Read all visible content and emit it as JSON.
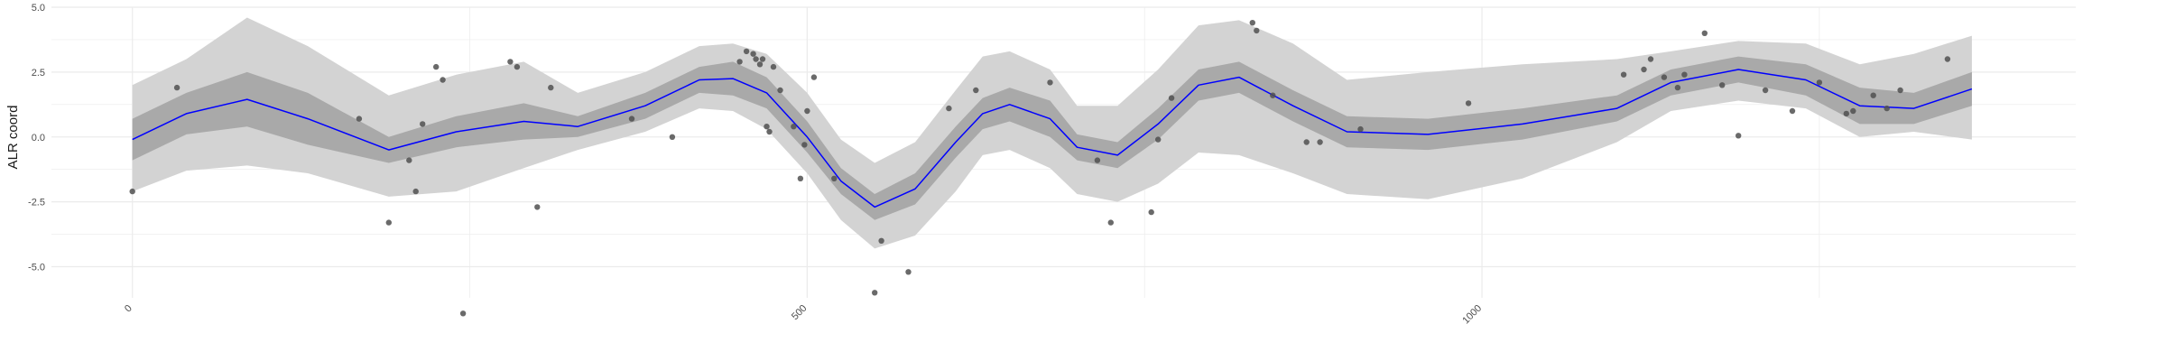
{
  "chart_data": {
    "type": "line",
    "title": "",
    "xlabel": "",
    "ylabel": "ALR coord",
    "xlim": [
      -60,
      1440
    ],
    "ylim": [
      -6.2,
      5.0
    ],
    "grid": true,
    "x_ticks": [
      0,
      500,
      1000
    ],
    "y_ticks": [
      -5.0,
      -2.5,
      0.0,
      2.5,
      5.0
    ],
    "x_tick_labels": [
      "0",
      "500",
      "1000"
    ],
    "y_tick_labels": [
      "-5.0",
      "-2.5",
      "0.0",
      "2.5",
      "5.0"
    ],
    "colors": {
      "line": "#0000ff",
      "inner_band": "#a9a9a9",
      "outer_band": "#d3d3d3",
      "points": "#505050",
      "grid": "#ebebeb"
    },
    "series": [
      {
        "kind": "mean",
        "x": [
          0,
          40,
          85,
          130,
          190,
          240,
          290,
          330,
          380,
          420,
          445,
          470,
          500,
          525,
          550,
          580,
          610,
          630,
          650,
          680,
          700,
          730,
          760,
          790,
          820,
          860,
          900,
          960,
          1030,
          1100,
          1140,
          1190,
          1240,
          1280,
          1320,
          1363
        ],
        "y": [
          -0.1,
          0.9,
          1.45,
          0.7,
          -0.5,
          0.2,
          0.6,
          0.4,
          1.2,
          2.2,
          2.25,
          1.7,
          0.0,
          -1.7,
          -2.7,
          -2.0,
          -0.2,
          0.9,
          1.25,
          0.7,
          -0.4,
          -0.7,
          0.5,
          2.0,
          2.3,
          1.2,
          0.2,
          0.1,
          0.5,
          1.1,
          2.1,
          2.6,
          2.2,
          1.2,
          1.1,
          1.85
        ]
      },
      {
        "kind": "inner-band",
        "lower": [
          -0.9,
          0.1,
          0.4,
          -0.3,
          -1.0,
          -0.4,
          -0.1,
          0.0,
          0.7,
          1.7,
          1.6,
          1.1,
          -0.6,
          -2.2,
          -3.2,
          -2.6,
          -0.8,
          0.3,
          0.6,
          0.0,
          -0.9,
          -1.2,
          -0.1,
          1.4,
          1.7,
          0.6,
          -0.4,
          -0.5,
          -0.1,
          0.6,
          1.6,
          2.1,
          1.6,
          0.5,
          0.5,
          1.2
        ],
        "upper": [
          0.7,
          1.7,
          2.5,
          1.7,
          0.0,
          0.8,
          1.3,
          0.8,
          1.7,
          2.7,
          2.9,
          2.3,
          0.6,
          -1.2,
          -2.2,
          -1.4,
          0.4,
          1.5,
          1.9,
          1.4,
          0.1,
          -0.2,
          1.1,
          2.6,
          2.9,
          1.8,
          0.8,
          0.7,
          1.1,
          1.6,
          2.6,
          3.1,
          2.8,
          1.9,
          1.7,
          2.5
        ]
      },
      {
        "kind": "outer-band",
        "lower": [
          -2.1,
          -1.3,
          -1.1,
          -1.4,
          -2.3,
          -2.1,
          -1.2,
          -0.5,
          0.2,
          1.1,
          1.0,
          0.3,
          -1.4,
          -3.2,
          -4.3,
          -3.8,
          -2.1,
          -0.7,
          -0.5,
          -1.2,
          -2.2,
          -2.5,
          -1.8,
          -0.6,
          -0.7,
          -1.4,
          -2.2,
          -2.4,
          -1.6,
          -0.2,
          1.0,
          1.4,
          1.1,
          0.0,
          0.2,
          -0.1
        ],
        "upper": [
          2.0,
          3.0,
          4.6,
          3.5,
          1.6,
          2.4,
          2.9,
          1.7,
          2.5,
          3.5,
          3.6,
          3.2,
          1.7,
          -0.1,
          -1.0,
          -0.2,
          1.8,
          3.1,
          3.3,
          2.6,
          1.2,
          1.2,
          2.6,
          4.3,
          4.5,
          3.6,
          2.2,
          2.5,
          2.8,
          3.0,
          3.3,
          3.7,
          3.6,
          2.8,
          3.2,
          3.9
        ]
      },
      {
        "kind": "observed",
        "x": [
          0,
          33,
          168,
          190,
          205,
          210,
          215,
          225,
          230,
          245,
          280,
          285,
          300,
          310,
          370,
          400,
          450,
          455,
          460,
          462,
          465,
          467,
          470,
          472,
          475,
          480,
          490,
          495,
          498,
          500,
          505,
          520,
          550,
          555,
          575,
          605,
          625,
          680,
          715,
          725,
          755,
          760,
          770,
          830,
          833,
          845,
          870,
          880,
          910,
          990,
          1105,
          1120,
          1125,
          1135,
          1145,
          1150,
          1165,
          1178,
          1190,
          1210,
          1230,
          1250,
          1270,
          1275,
          1290,
          1300,
          1310,
          1345
        ],
        "y": [
          -2.1,
          1.9,
          0.7,
          -3.3,
          -0.9,
          -2.1,
          0.5,
          2.7,
          2.2,
          -6.8,
          2.9,
          2.7,
          -2.7,
          1.9,
          0.7,
          0.0,
          2.9,
          3.3,
          3.2,
          3.0,
          2.8,
          3.0,
          0.4,
          0.2,
          2.7,
          1.8,
          0.4,
          -1.6,
          -0.3,
          1.0,
          2.3,
          -1.6,
          -6.0,
          -4.0,
          -5.2,
          1.1,
          1.8,
          2.1,
          -0.9,
          -3.3,
          -2.9,
          -0.1,
          1.5,
          4.4,
          4.1,
          1.6,
          -0.2,
          -0.2,
          0.3,
          1.3,
          2.4,
          2.6,
          3.0,
          2.3,
          1.9,
          2.4,
          4.0,
          2.0,
          0.05,
          1.8,
          1.0,
          2.1,
          0.9,
          1.0,
          1.6,
          1.1,
          1.8,
          3.0
        ]
      }
    ]
  }
}
